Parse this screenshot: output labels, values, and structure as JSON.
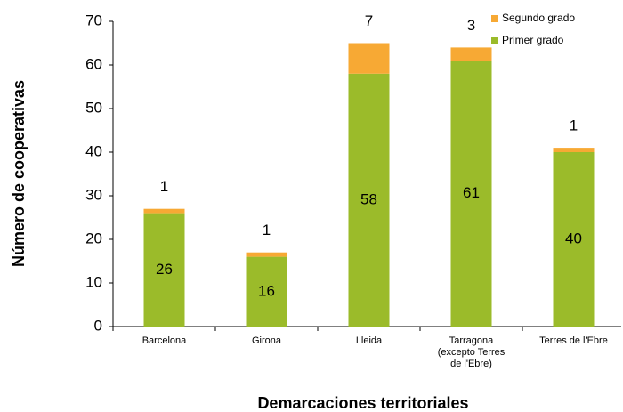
{
  "chart_data": {
    "type": "stacked_bar",
    "x_label": "Demarcaciones territoriales",
    "y_label": "Número de cooperativas",
    "categories": [
      "Barcelona",
      "Girona",
      "Lleida",
      "Tarragona\n(excepto Terres\nde l'Ebre)",
      "Terres de l'Ebre"
    ],
    "series": [
      {
        "name": "Primer grado",
        "color": "#9bbb2a",
        "values": [
          26,
          16,
          58,
          61,
          40
        ]
      },
      {
        "name": "Segundo grado",
        "color": "#f7a934",
        "values": [
          1,
          1,
          7,
          3,
          1
        ]
      }
    ],
    "ylim": [
      0,
      70
    ],
    "yticks": [
      0,
      10,
      20,
      30,
      40,
      50,
      60,
      70
    ],
    "grid": false,
    "legend": "top-right"
  }
}
